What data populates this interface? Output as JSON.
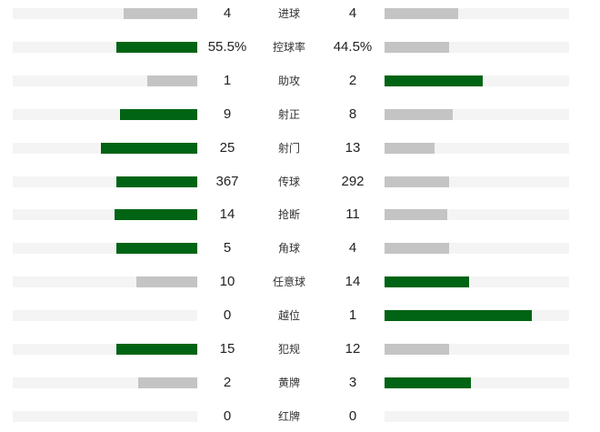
{
  "colors": {
    "leader": "#006414",
    "trailer": "#c4c4c4",
    "track": "#f4f4f4"
  },
  "stats": [
    {
      "label": "进球",
      "home": "4",
      "away": "4",
      "home_fill": 0.4,
      "away_fill": 0.4,
      "leader": "none"
    },
    {
      "label": "控球率",
      "home": "55.5%",
      "away": "44.5%",
      "home_fill": 0.44,
      "away_fill": 0.35,
      "leader": "home"
    },
    {
      "label": "助攻",
      "home": "1",
      "away": "2",
      "home_fill": 0.27,
      "away_fill": 0.53,
      "leader": "away"
    },
    {
      "label": "射正",
      "home": "9",
      "away": "8",
      "home_fill": 0.42,
      "away_fill": 0.37,
      "leader": "home"
    },
    {
      "label": "射门",
      "home": "25",
      "away": "13",
      "home_fill": 0.52,
      "away_fill": 0.27,
      "leader": "home"
    },
    {
      "label": "传球",
      "home": "367",
      "away": "292",
      "home_fill": 0.44,
      "away_fill": 0.35,
      "leader": "home"
    },
    {
      "label": "抢断",
      "home": "14",
      "away": "11",
      "home_fill": 0.45,
      "away_fill": 0.34,
      "leader": "home"
    },
    {
      "label": "角球",
      "home": "5",
      "away": "4",
      "home_fill": 0.44,
      "away_fill": 0.35,
      "leader": "home"
    },
    {
      "label": "任意球",
      "home": "10",
      "away": "14",
      "home_fill": 0.33,
      "away_fill": 0.46,
      "leader": "away"
    },
    {
      "label": "越位",
      "home": "0",
      "away": "1",
      "home_fill": 0,
      "away_fill": 0.8,
      "leader": "away"
    },
    {
      "label": "犯规",
      "home": "15",
      "away": "12",
      "home_fill": 0.44,
      "away_fill": 0.35,
      "leader": "home"
    },
    {
      "label": "黄牌",
      "home": "2",
      "away": "3",
      "home_fill": 0.32,
      "away_fill": 0.47,
      "leader": "away"
    },
    {
      "label": "红牌",
      "home": "0",
      "away": "0",
      "home_fill": 0,
      "away_fill": 0,
      "leader": "none"
    }
  ]
}
